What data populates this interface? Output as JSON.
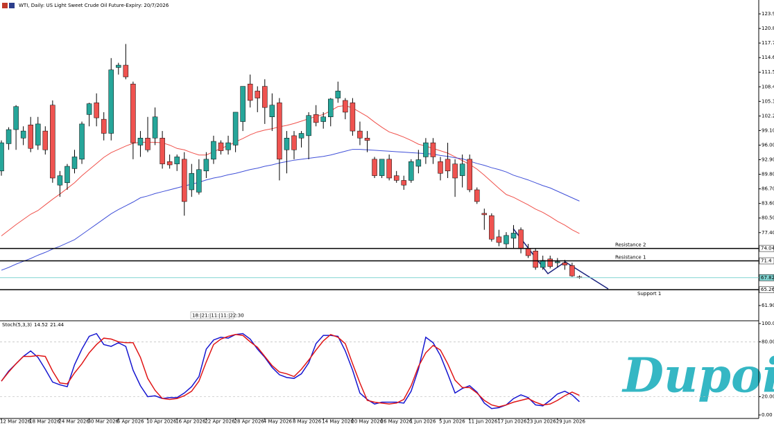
{
  "chart_data": [
    {
      "type": "candlestick",
      "title": "WTI, Daily:  US Light Sweet Crude Oil Future-Expiry: 20/7/2026",
      "timer": "18:|21:|11:|11:|22:30",
      "logo": "Dupoin",
      "categories": [
        "12 Mar 2026",
        null,
        null,
        null,
        "18 Mar 2026",
        null,
        null,
        null,
        "24 Mar 2026",
        null,
        null,
        null,
        "30 Mar 2026",
        null,
        null,
        null,
        "6 Apr 2026",
        null,
        null,
        null,
        "10 Apr 2026",
        null,
        null,
        null,
        "16 Apr 2026",
        null,
        null,
        null,
        "22 Apr 2026",
        null,
        null,
        null,
        "28 Apr 2026",
        null,
        null,
        null,
        "4 May 2026",
        null,
        null,
        null,
        "8 May 2026",
        null,
        null,
        null,
        "14 May 2026",
        null,
        null,
        null,
        "20 May 2026",
        null,
        null,
        null,
        "26 May 2026",
        null,
        null,
        null,
        "1 Jun 2026",
        null,
        null,
        null,
        "5 Jun 2026",
        null,
        null,
        null,
        "11 Jun 2026",
        null,
        null,
        null,
        "17 Jun 2026",
        null,
        null,
        null,
        "23 Jun 2026",
        null,
        null,
        null,
        "29 Jun 2026",
        null,
        null,
        null
      ],
      "open": [
        90.5,
        96.3,
        99.3,
        97.5,
        100.3,
        96,
        99,
        104.5,
        87.5,
        88,
        91,
        93,
        102.5,
        105,
        101.5,
        98.5,
        112.5,
        113,
        109,
        96,
        97.5,
        97.5,
        97.5,
        92.5,
        92,
        93,
        86.5,
        86,
        90.5,
        93,
        96.5,
        95,
        96,
        101,
        109,
        107.5,
        108.5,
        102,
        105,
        95,
        98,
        97.5,
        98,
        102.5,
        101,
        102,
        106,
        105.5,
        105,
        99,
        97.5,
        93,
        89.5,
        93,
        89.5,
        88.5,
        88.5,
        91.5,
        93.5,
        96.5,
        92.5,
        93,
        92,
        89.5,
        93,
        86.5,
        81.5,
        81,
        76.5,
        75,
        76.2,
        78,
        74,
        73.5,
        70,
        71.8,
        71,
        71,
        70.4,
        68
      ],
      "high": [
        97,
        99.8,
        104.5,
        100,
        102,
        102,
        100,
        105.5,
        90.5,
        92,
        95,
        101,
        105,
        107,
        103,
        114.5,
        113.5,
        117.5,
        109.5,
        99,
        102,
        104,
        99,
        94,
        94,
        94.5,
        92,
        93,
        94.5,
        98,
        97,
        98,
        103,
        108.5,
        111,
        108.5,
        110,
        107,
        106,
        99,
        99,
        99,
        103,
        104.5,
        103,
        106,
        109.5,
        106,
        106,
        101,
        99,
        93.5,
        93,
        94,
        90.5,
        89.5,
        93,
        95,
        97.5,
        97.5,
        93.5,
        96.5,
        93,
        94,
        94,
        87,
        82.5,
        81.5,
        78,
        77.5,
        79,
        78.5,
        75,
        74,
        72.5,
        72.5,
        72,
        71.6,
        71,
        68.3
      ],
      "low": [
        89.5,
        95,
        95,
        96,
        94.5,
        95,
        94,
        88,
        85,
        86.5,
        90,
        92,
        100,
        100,
        97,
        97,
        111,
        110,
        93,
        93.5,
        94.5,
        96,
        91,
        91,
        90.5,
        81,
        85,
        85.5,
        89,
        92,
        94,
        94,
        94.5,
        99,
        104,
        103,
        100.5,
        99,
        88.5,
        90,
        93,
        95.5,
        93,
        100,
        99.5,
        100,
        105,
        101.5,
        98,
        96,
        94.5,
        89,
        89,
        88.5,
        88,
        86.5,
        88,
        90,
        92,
        92,
        88.5,
        89,
        85,
        87,
        86,
        83.5,
        78,
        75.5,
        74.5,
        74,
        74,
        73,
        72,
        69.5,
        69.5,
        69.8,
        70,
        69.5,
        68,
        67.6
      ],
      "close": [
        96.5,
        99.3,
        104.2,
        99,
        95.3,
        100.5,
        95,
        89,
        89.5,
        91.5,
        93.5,
        100.5,
        104.8,
        101.8,
        98.5,
        112,
        113,
        110.5,
        96.5,
        97.5,
        95,
        102,
        92,
        91.8,
        93.5,
        84,
        90,
        90.8,
        93,
        96.8,
        94.8,
        96.5,
        103,
        108.5,
        105.5,
        106,
        104,
        104.5,
        93,
        97.5,
        95,
        98.5,
        102.3,
        100.8,
        102,
        105.8,
        107.5,
        103,
        99,
        97.5,
        97,
        89.5,
        93,
        89,
        88.5,
        87.5,
        92.5,
        92.9,
        96.5,
        93.5,
        90,
        90.5,
        89,
        92,
        86.5,
        84,
        81.2,
        76,
        75.3,
        76.8,
        77.3,
        74,
        72.5,
        70,
        71.5,
        70.2,
        71.2,
        70.5,
        68.2,
        67.82
      ],
      "up_color": "#26a69a",
      "down_color": "#ef5350",
      "overlays": [
        {
          "color": "#f0504a",
          "values": [
            76.7,
            77.9,
            79.1,
            80.2,
            81.3,
            82.1,
            83.3,
            84.5,
            85.6,
            86.8,
            88.0,
            89.5,
            90.8,
            92.1,
            93.4,
            94.4,
            95.1,
            95.8,
            96.4,
            96.6,
            96.6,
            96.6,
            96.5,
            96.0,
            95.3,
            95.0,
            94.4,
            93.9,
            93.9,
            94.6,
            95.3,
            95.9,
            96.7,
            97.4,
            98.2,
            98.8,
            99.2,
            99.5,
            99.9,
            100.2,
            100.6,
            101.1,
            101.6,
            102.1,
            102.5,
            103.3,
            104.2,
            104.4,
            103.9,
            103.0,
            102.1,
            100.9,
            99.8,
            98.8,
            98.3,
            97.7,
            97.0,
            96.2,
            95.8,
            95.3,
            94.8,
            94.3,
            93.5,
            92.7,
            91.9,
            90.9,
            89.6,
            88.2,
            86.8,
            85.5,
            84.9,
            84.1,
            83.3,
            82.4,
            81.7,
            80.8,
            79.8,
            79.0,
            78.0,
            77.2
          ]
        },
        {
          "color": "#3f4fd8",
          "values": [
            69.4,
            70.0,
            70.7,
            71.3,
            71.9,
            72.6,
            73.2,
            73.9,
            74.5,
            75.2,
            75.9,
            77.0,
            78.1,
            79.2,
            80.3,
            81.4,
            82.3,
            83.1,
            83.9,
            84.8,
            85.2,
            85.7,
            86.1,
            86.5,
            86.9,
            87.3,
            87.7,
            88.1,
            88.6,
            89.0,
            89.3,
            89.7,
            90.0,
            90.4,
            90.8,
            91.1,
            91.5,
            91.8,
            92.2,
            92.5,
            92.8,
            93.0,
            93.2,
            93.4,
            93.6,
            93.9,
            94.3,
            94.7,
            95.1,
            95.1,
            95.0,
            94.9,
            94.8,
            94.7,
            94.6,
            94.5,
            94.4,
            94.3,
            94.2,
            94.1,
            93.8,
            93.6,
            93.3,
            93.1,
            92.6,
            92.1,
            91.7,
            91.2,
            90.8,
            90.3,
            89.6,
            89.1,
            88.6,
            88.0,
            87.4,
            86.9,
            86.2,
            85.5,
            84.8,
            84.1
          ]
        }
      ],
      "levels": [
        {
          "value": 74.04,
          "label": "Resistance 2",
          "color": "#000000"
        },
        {
          "value": 71.4,
          "label": "Resistance 1",
          "color": "#000000"
        },
        {
          "value": 67.82,
          "color": "#7fd3d0"
        },
        {
          "value": 65.26,
          "label": "Support 1",
          "color": "#000000"
        }
      ],
      "ylim": [
        58.66,
        126.85
      ],
      "yticks": [
        {
          "value": 123.9,
          "label": "123.90"
        },
        {
          "value": 120.8,
          "label": "120.80"
        },
        {
          "value": 117.7,
          "label": "117.70"
        },
        {
          "value": 114.6,
          "label": "114.60"
        },
        {
          "value": 111.5,
          "label": "111.50"
        },
        {
          "value": 108.4,
          "label": "108.40"
        },
        {
          "value": 105.3,
          "label": "105.30"
        },
        {
          "value": 102.2,
          "label": "102.20"
        },
        {
          "value": 99.1,
          "label": "99.10"
        },
        {
          "value": 96.0,
          "label": "96.00"
        },
        {
          "value": 92.9,
          "label": "92.90"
        },
        {
          "value": 89.8,
          "label": "89.80"
        },
        {
          "value": 86.7,
          "label": "86.70"
        },
        {
          "value": 83.6,
          "label": "83.60"
        },
        {
          "value": 80.5,
          "label": "80.50"
        },
        {
          "value": 77.4,
          "label": "77.40"
        },
        {
          "value": 61.9,
          "label": "61.90"
        }
      ]
    },
    {
      "type": "line",
      "title": "Stoch(5,3,3)",
      "series": [
        {
          "color": "#1515d0",
          "values": [
            37,
            48,
            56,
            64,
            70,
            63,
            50,
            36,
            33,
            31,
            55,
            72,
            86,
            89,
            77,
            75,
            79,
            75,
            49,
            32,
            20,
            21,
            18,
            19,
            19,
            24,
            31,
            42,
            72,
            82,
            85,
            84,
            88,
            89,
            83,
            72,
            63,
            52,
            44,
            41,
            40,
            45,
            57,
            78,
            87,
            87,
            86,
            70,
            49,
            24,
            17,
            12,
            14,
            14,
            14,
            13,
            26,
            50,
            85,
            79,
            65,
            45,
            24,
            29,
            32,
            25,
            13,
            7,
            8,
            11,
            18,
            22,
            19,
            11,
            10,
            16,
            23,
            26,
            22,
            14.52
          ]
        },
        {
          "color": "#e01515",
          "values": [
            37,
            47,
            56,
            64,
            64,
            65,
            64,
            48,
            35,
            34,
            46,
            56,
            68,
            77,
            84,
            83,
            80,
            79,
            79,
            63,
            40,
            27,
            18,
            17,
            18,
            21,
            26,
            37,
            58,
            77,
            83,
            86,
            88,
            87,
            80,
            74,
            64,
            54,
            47,
            45,
            42,
            50,
            60,
            71,
            81,
            88,
            85,
            78,
            56,
            35,
            16,
            14,
            13,
            12,
            13,
            17,
            32,
            53,
            68,
            76,
            71,
            56,
            38,
            30,
            30,
            24,
            16,
            11,
            9,
            11,
            14,
            16,
            18,
            14,
            11,
            12,
            16,
            21,
            25,
            21.44
          ]
        }
      ],
      "ylim": [
        -3.8,
        103
      ],
      "yticks": [
        {
          "value": 100,
          "label": "100.00"
        },
        {
          "value": 80,
          "label": "80.00"
        },
        {
          "value": 20,
          "label": "20.00"
        },
        {
          "value": 0,
          "label": "0.00"
        }
      ],
      "grid_ticks": [
        1,
        2
      ]
    }
  ]
}
